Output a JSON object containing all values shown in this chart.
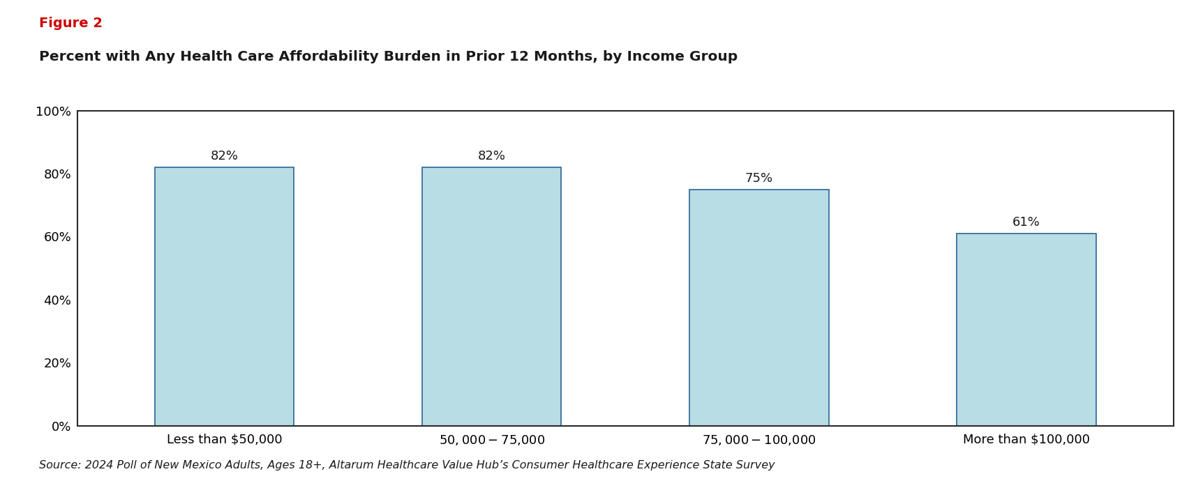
{
  "figure_label": "Figure 2",
  "figure_label_color": "#cc0000",
  "title": "Percent with Any Health Care Affordability Burden in Prior 12 Months, by Income Group",
  "title_color": "#1a1a1a",
  "categories": [
    "Less than $50,000",
    "$50,000 - $75,000",
    "$75,000 - $100,000",
    "More than $100,000"
  ],
  "values": [
    82,
    82,
    75,
    61
  ],
  "bar_color": "#b8dde4",
  "bar_edgecolor": "#2a6496",
  "ylim": [
    0,
    100
  ],
  "yticks": [
    0,
    20,
    40,
    60,
    80,
    100
  ],
  "source_text": "Source: 2024 Poll of New Mexico Adults, Ages 18+, Altarum Healthcare Value Hub’s Consumer Healthcare Experience State Survey",
  "source_color": "#1a1a1a",
  "source_fontsize": 11.5,
  "figure_label_fontsize": 14,
  "title_fontsize": 14.5,
  "bar_label_fontsize": 13,
  "tick_fontsize": 13,
  "xtick_fontsize": 13,
  "background_color": "#ffffff",
  "border_color": "#2a2a2a"
}
